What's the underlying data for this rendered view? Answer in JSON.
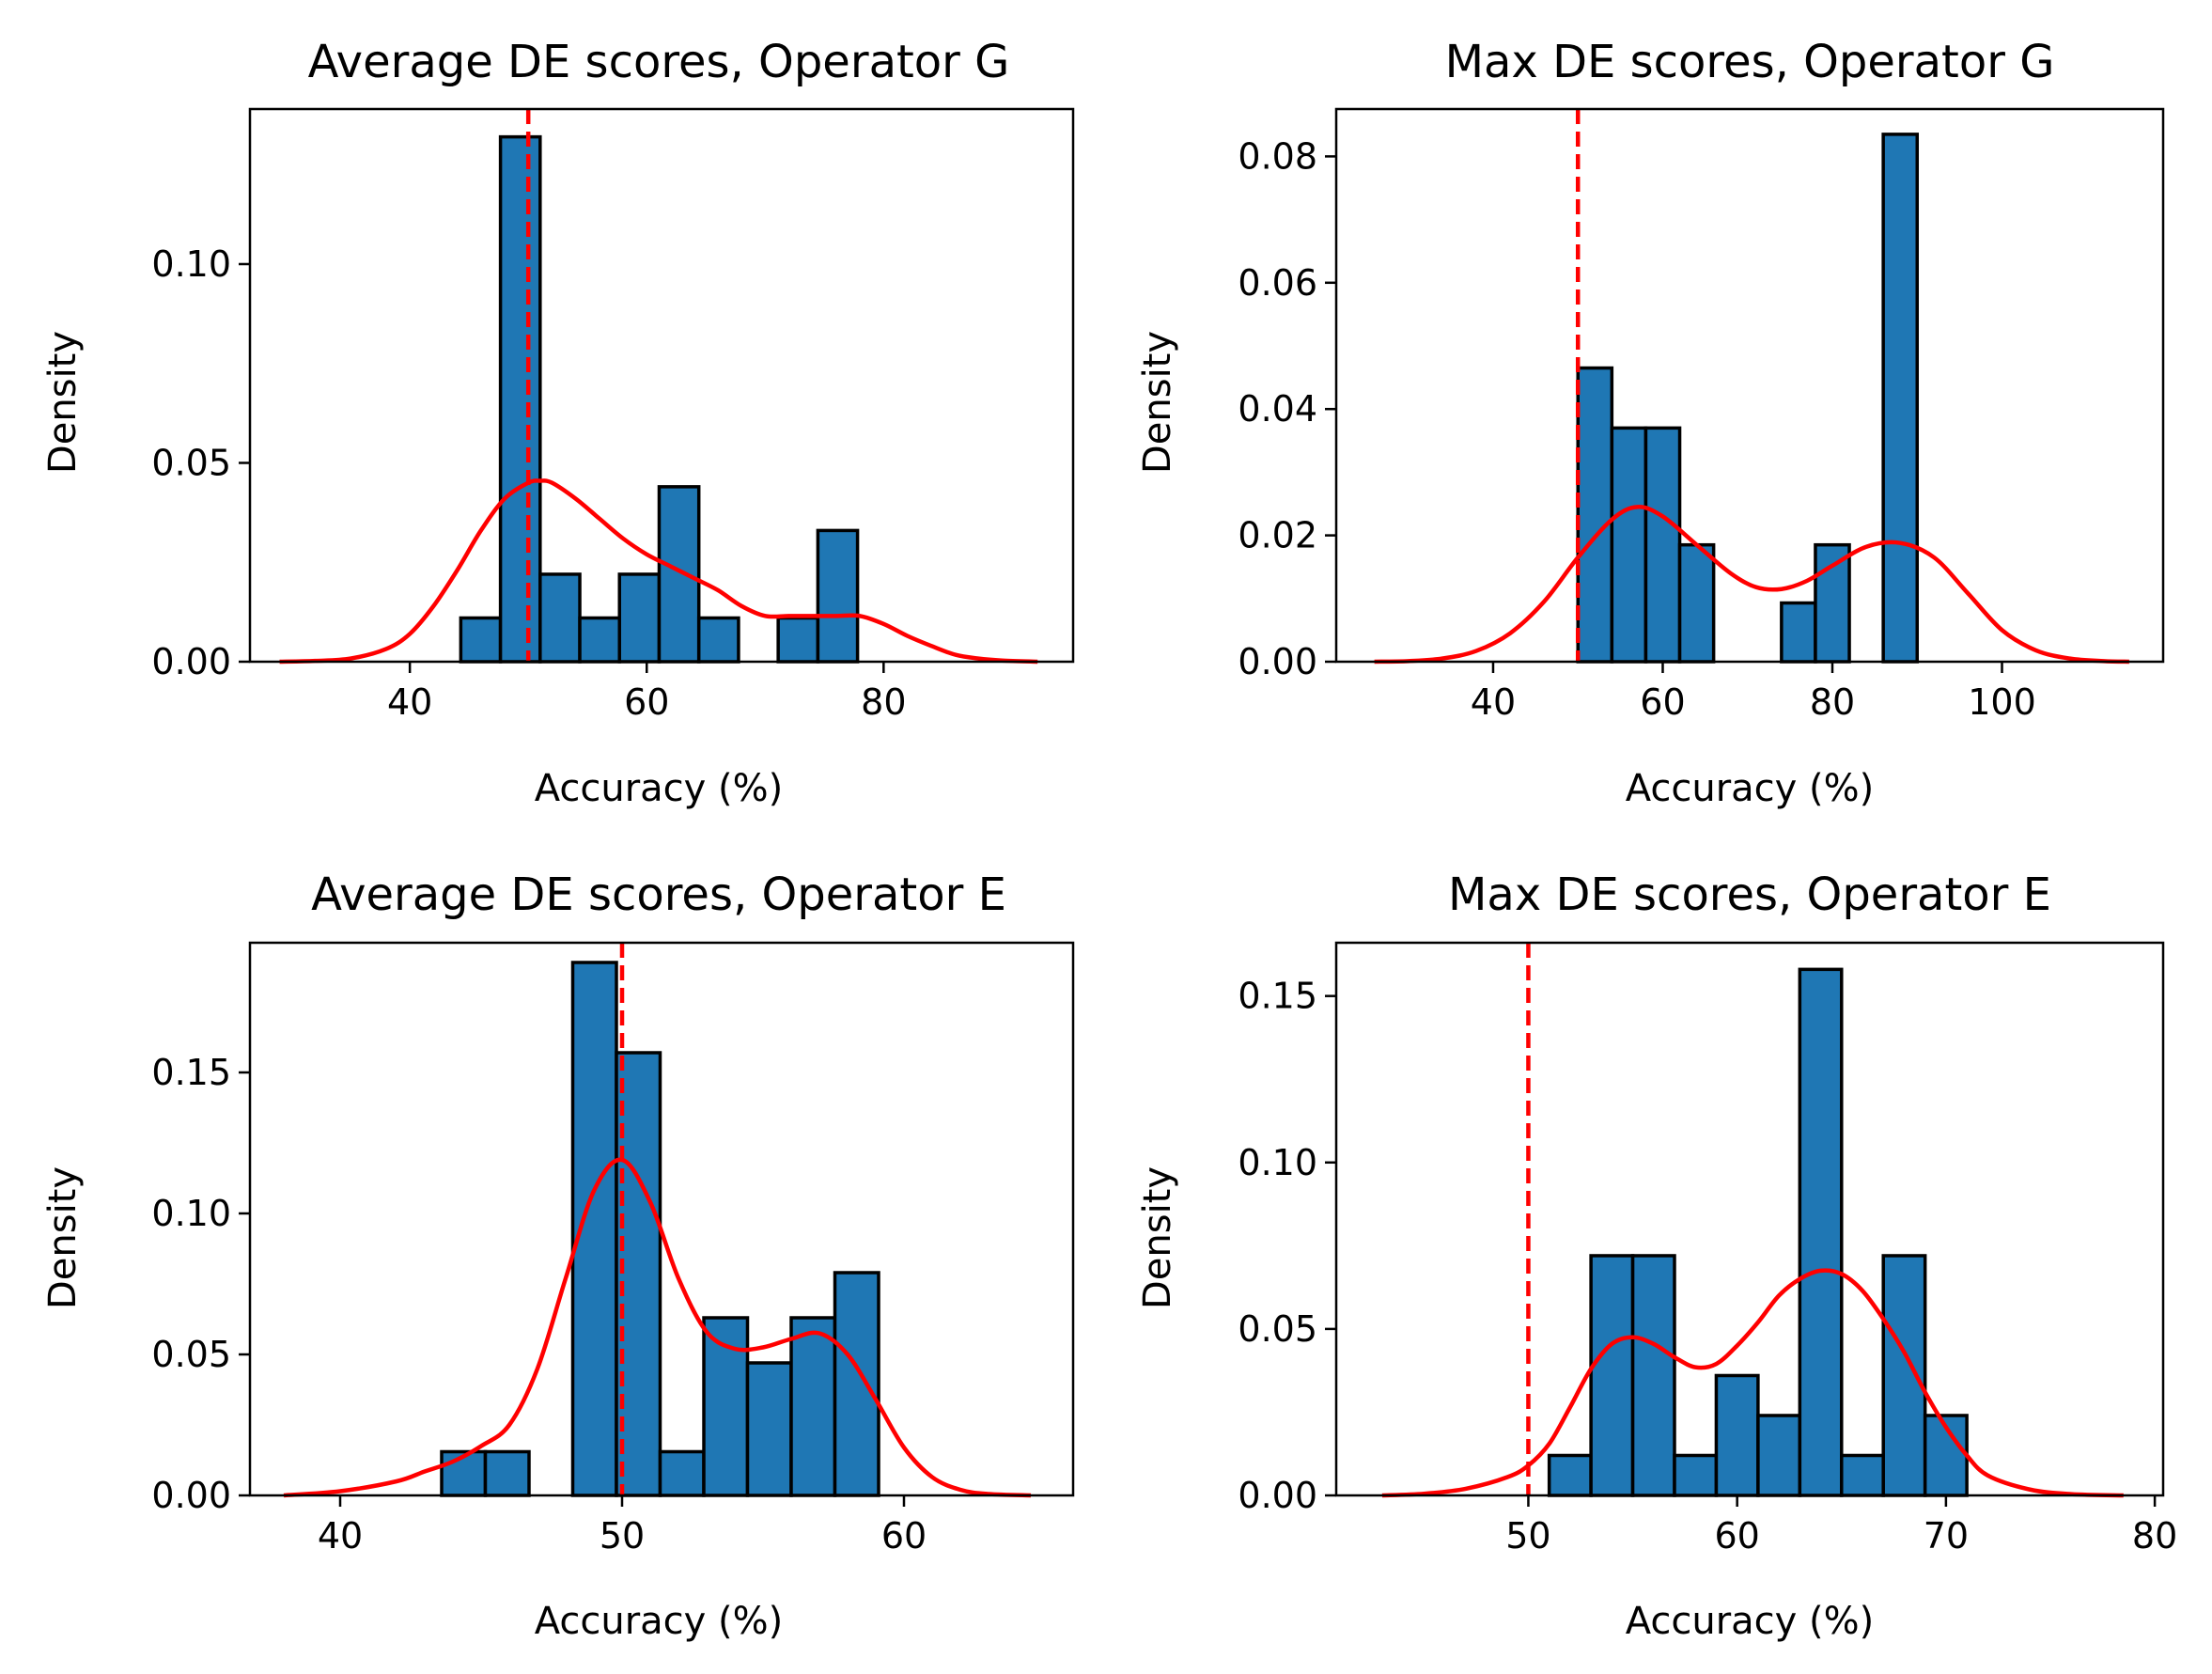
{
  "chart_data": [
    {
      "type": "bar",
      "title": "Average DE scores, Operator G",
      "xlabel": "Accuracy (%)",
      "ylabel": "Density",
      "xlim": [
        26.5,
        96
      ],
      "ylim": [
        0,
        0.139
      ],
      "xticks": [
        40,
        60,
        80
      ],
      "yticks": [
        0.0,
        0.05,
        0.1
      ],
      "ytick_labels": [
        "0.00",
        "0.05",
        "0.10"
      ],
      "bin_start": 44.3,
      "bin_width": 3.35,
      "values": [
        0.011,
        0.132,
        0.022,
        0.011,
        0.022,
        0.044,
        0.011,
        0.0,
        0.011,
        0.033
      ],
      "reference_line": 50,
      "kde": {
        "x": [
          29,
          32,
          35,
          38,
          40,
          42,
          44,
          46,
          48,
          50,
          51,
          52,
          54,
          56,
          58,
          60,
          62,
          64,
          66,
          68,
          70,
          72,
          74,
          76,
          78,
          80,
          82,
          84,
          86,
          88,
          90,
          93
        ],
        "y": [
          0.0,
          0.0002,
          0.0008,
          0.0032,
          0.007,
          0.014,
          0.023,
          0.033,
          0.041,
          0.045,
          0.0455,
          0.045,
          0.041,
          0.036,
          0.031,
          0.027,
          0.024,
          0.021,
          0.018,
          0.014,
          0.0115,
          0.0115,
          0.0115,
          0.0115,
          0.0115,
          0.0095,
          0.0065,
          0.004,
          0.0018,
          0.0008,
          0.0003,
          0.0
        ]
      }
    },
    {
      "type": "bar",
      "title": "Max DE scores, Operator G",
      "xlabel": "Accuracy (%)",
      "ylabel": "Density",
      "xlim": [
        21.5,
        119
      ],
      "ylim": [
        0,
        0.0875
      ],
      "xticks": [
        40,
        60,
        80,
        100
      ],
      "yticks": [
        0.0,
        0.02,
        0.04,
        0.06,
        0.08
      ],
      "ytick_labels": [
        "0.00",
        "0.02",
        "0.04",
        "0.06",
        "0.08"
      ],
      "bin_start": 50,
      "bin_width": 4.0,
      "values": [
        0.0465,
        0.037,
        0.037,
        0.0185,
        0.0,
        0.0,
        0.0093,
        0.0185,
        0.0,
        0.0835
      ],
      "reference_line": 50,
      "kde": {
        "x": [
          26,
          30,
          34,
          38,
          42,
          46,
          50,
          54,
          57,
          60,
          64,
          68,
          71,
          74,
          77,
          80,
          84,
          88,
          92,
          96,
          100,
          104,
          108,
          112,
          115
        ],
        "y": [
          0.0,
          0.0001,
          0.0005,
          0.0017,
          0.0045,
          0.0095,
          0.0165,
          0.0225,
          0.0245,
          0.023,
          0.0185,
          0.014,
          0.0118,
          0.0115,
          0.0128,
          0.0152,
          0.0182,
          0.0188,
          0.0165,
          0.0108,
          0.005,
          0.0018,
          0.0005,
          0.0001,
          0.0
        ]
      }
    },
    {
      "type": "bar",
      "title": "Average DE scores, Operator E",
      "xlabel": "Accuracy (%)",
      "ylabel": "Density",
      "xlim": [
        36.8,
        66
      ],
      "ylim": [
        0,
        0.196
      ],
      "xticks": [
        40,
        50,
        60
      ],
      "yticks": [
        0.0,
        0.05,
        0.1,
        0.15
      ],
      "ytick_labels": [
        "0.00",
        "0.05",
        "0.10",
        "0.15"
      ],
      "bin_start": 43.6,
      "bin_width": 1.55,
      "values": [
        0.0155,
        0.0155,
        0.0,
        0.189,
        0.157,
        0.0155,
        0.063,
        0.047,
        0.063,
        0.079
      ],
      "reference_line": 50,
      "kde": {
        "x": [
          38,
          40,
          42,
          43,
          44,
          45,
          46,
          47,
          48,
          49,
          50,
          51,
          52,
          53,
          54,
          55,
          56,
          57,
          58,
          59,
          60,
          61,
          62,
          63,
          64.5
        ],
        "y": [
          0.0,
          0.0015,
          0.005,
          0.0085,
          0.012,
          0.0175,
          0.025,
          0.045,
          0.077,
          0.108,
          0.119,
          0.104,
          0.077,
          0.058,
          0.052,
          0.0525,
          0.0555,
          0.0575,
          0.05,
          0.034,
          0.017,
          0.0065,
          0.002,
          0.0005,
          0.0
        ]
      }
    },
    {
      "type": "bar",
      "title": "Max DE scores, Operator E",
      "xlabel": "Accuracy (%)",
      "ylabel": "Density",
      "xlim": [
        40.8,
        80.4
      ],
      "ylim": [
        0,
        0.166
      ],
      "xticks": [
        50,
        60,
        70,
        80
      ],
      "yticks": [
        0.0,
        0.05,
        0.1,
        0.15
      ],
      "ytick_labels": [
        "0.00",
        "0.05",
        "0.10",
        "0.15"
      ],
      "bin_start": 51,
      "bin_width": 2.0,
      "values": [
        0.012,
        0.072,
        0.072,
        0.012,
        0.036,
        0.024,
        0.158,
        0.012,
        0.072,
        0.024
      ],
      "reference_line": 50,
      "kde": {
        "x": [
          43,
          45,
          47,
          49,
          50,
          51,
          52,
          53,
          54,
          55,
          56,
          57,
          58,
          59,
          60,
          61,
          62,
          63,
          64,
          65,
          66,
          67,
          68,
          69,
          70,
          71,
          72,
          74,
          76,
          78.5
        ],
        "y": [
          0.0,
          0.0005,
          0.002,
          0.0055,
          0.009,
          0.0155,
          0.0265,
          0.038,
          0.0455,
          0.0475,
          0.0455,
          0.0415,
          0.0385,
          0.0395,
          0.045,
          0.052,
          0.06,
          0.065,
          0.0675,
          0.0665,
          0.0615,
          0.053,
          0.043,
          0.031,
          0.0205,
          0.012,
          0.006,
          0.0018,
          0.0004,
          0.0
        ]
      }
    }
  ]
}
